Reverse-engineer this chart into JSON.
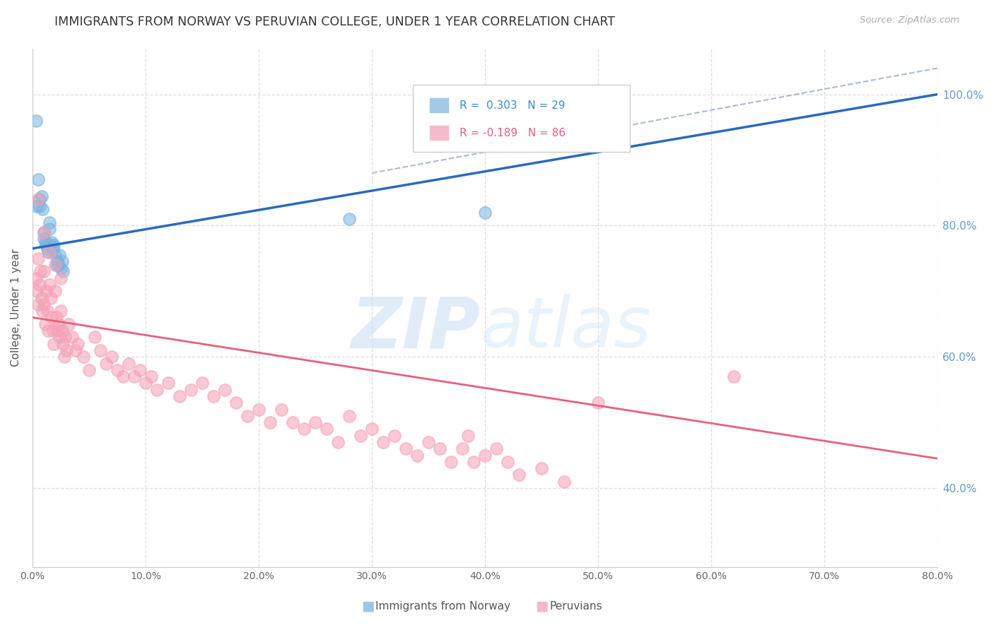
{
  "title": "IMMIGRANTS FROM NORWAY VS PERUVIAN COLLEGE, UNDER 1 YEAR CORRELATION CHART",
  "source": "Source: ZipAtlas.com",
  "ylabel": "College, Under 1 year",
  "xlim": [
    0,
    80
  ],
  "ylim": [
    28,
    107
  ],
  "norway_color": "#7ab3e0",
  "peru_color": "#f5a0b5",
  "norway_line_color": "#2a6abf",
  "peru_line_color": "#e8607a",
  "ci_color": "#aabbcc",
  "legend_norway_text": "R =  0.303   N = 29",
  "legend_peru_text": "R = -0.189   N = 86",
  "legend_norway_color": "#4488cc",
  "legend_peru_color": "#e06080",
  "legend_label_norway": "Immigrants from Norway",
  "legend_label_peru": "Peruvians",
  "background_color": "#ffffff",
  "grid_color": "#dddddd",
  "right_ytick_labels": [
    "40.0%",
    "60.0%",
    "80.0%",
    "100.0%"
  ],
  "right_ytick_vals": [
    40,
    60,
    80,
    100
  ],
  "right_ytick_color": "#6699cc",
  "xtick_labels": [
    "0.0%",
    "10.0%",
    "20.0%",
    "30.0%",
    "40.0%",
    "50.0%",
    "60.0%",
    "70.0%",
    "80.0%"
  ],
  "xtick_vals": [
    0,
    10,
    20,
    30,
    40,
    50,
    60,
    70,
    80
  ],
  "norway_x": [
    0.3,
    0.4,
    0.5,
    0.6,
    0.6,
    0.8,
    0.9,
    1.0,
    1.0,
    1.1,
    1.2,
    1.3,
    1.4,
    1.5,
    1.5,
    1.6,
    1.7,
    1.8,
    1.9,
    2.0,
    2.1,
    2.2,
    2.3,
    2.4,
    2.5,
    2.6,
    2.7,
    28.0,
    40.0
  ],
  "norway_y": [
    96.0,
    83.0,
    87.0,
    84.0,
    83.0,
    84.5,
    82.5,
    79.0,
    78.0,
    77.5,
    77.0,
    76.5,
    76.0,
    80.5,
    79.5,
    77.0,
    77.5,
    76.5,
    77.0,
    75.5,
    74.0,
    74.5,
    74.0,
    75.5,
    73.5,
    74.5,
    73.0,
    81.0,
    82.0
  ],
  "peru_x": [
    0.3,
    0.4,
    0.5,
    0.5,
    0.6,
    0.7,
    0.8,
    0.9,
    1.0,
    1.0,
    1.1,
    1.2,
    1.3,
    1.4,
    1.5,
    1.6,
    1.7,
    1.8,
    1.9,
    2.0,
    2.1,
    2.2,
    2.3,
    2.4,
    2.5,
    2.6,
    2.7,
    2.8,
    2.9,
    3.0,
    3.2,
    3.5,
    3.8,
    4.0,
    4.5,
    5.0,
    5.5,
    6.0,
    6.5,
    7.0,
    7.5,
    8.0,
    8.5,
    9.0,
    9.5,
    10.0,
    10.5,
    11.0,
    12.0,
    13.0,
    14.0,
    15.0,
    16.0,
    17.0,
    18.0,
    19.0,
    20.0,
    21.0,
    22.0,
    23.0,
    24.0,
    25.0,
    26.0,
    27.0,
    28.0,
    29.0,
    30.0,
    31.0,
    32.0,
    33.0,
    34.0,
    35.0,
    36.0,
    37.0,
    38.0,
    38.5,
    39.0,
    40.0,
    41.0,
    42.0,
    43.0,
    45.0,
    47.0,
    50.0,
    62.0
  ],
  "peru_y": [
    72.0,
    70.0,
    75.0,
    68.0,
    71.0,
    73.0,
    69.0,
    67.0,
    73.0,
    68.0,
    65.0,
    70.0,
    67.0,
    64.0,
    71.0,
    69.0,
    66.0,
    64.0,
    62.0,
    70.0,
    66.0,
    64.0,
    65.0,
    63.0,
    67.0,
    64.0,
    62.0,
    60.0,
    63.0,
    61.0,
    65.0,
    63.0,
    61.0,
    62.0,
    60.0,
    58.0,
    63.0,
    61.0,
    59.0,
    60.0,
    58.0,
    57.0,
    59.0,
    57.0,
    58.0,
    56.0,
    57.0,
    55.0,
    56.0,
    54.0,
    55.0,
    56.0,
    54.0,
    55.0,
    53.0,
    51.0,
    52.0,
    50.0,
    52.0,
    50.0,
    49.0,
    50.0,
    49.0,
    47.0,
    51.0,
    48.0,
    49.0,
    47.0,
    48.0,
    46.0,
    45.0,
    47.0,
    46.0,
    44.0,
    46.0,
    48.0,
    44.0,
    45.0,
    46.0,
    44.0,
    42.0,
    43.0,
    41.0,
    53.0,
    57.0
  ],
  "peru_extra_high_y": [
    84.0,
    79.0,
    76.0,
    74.0,
    72.0,
    68.0
  ]
}
